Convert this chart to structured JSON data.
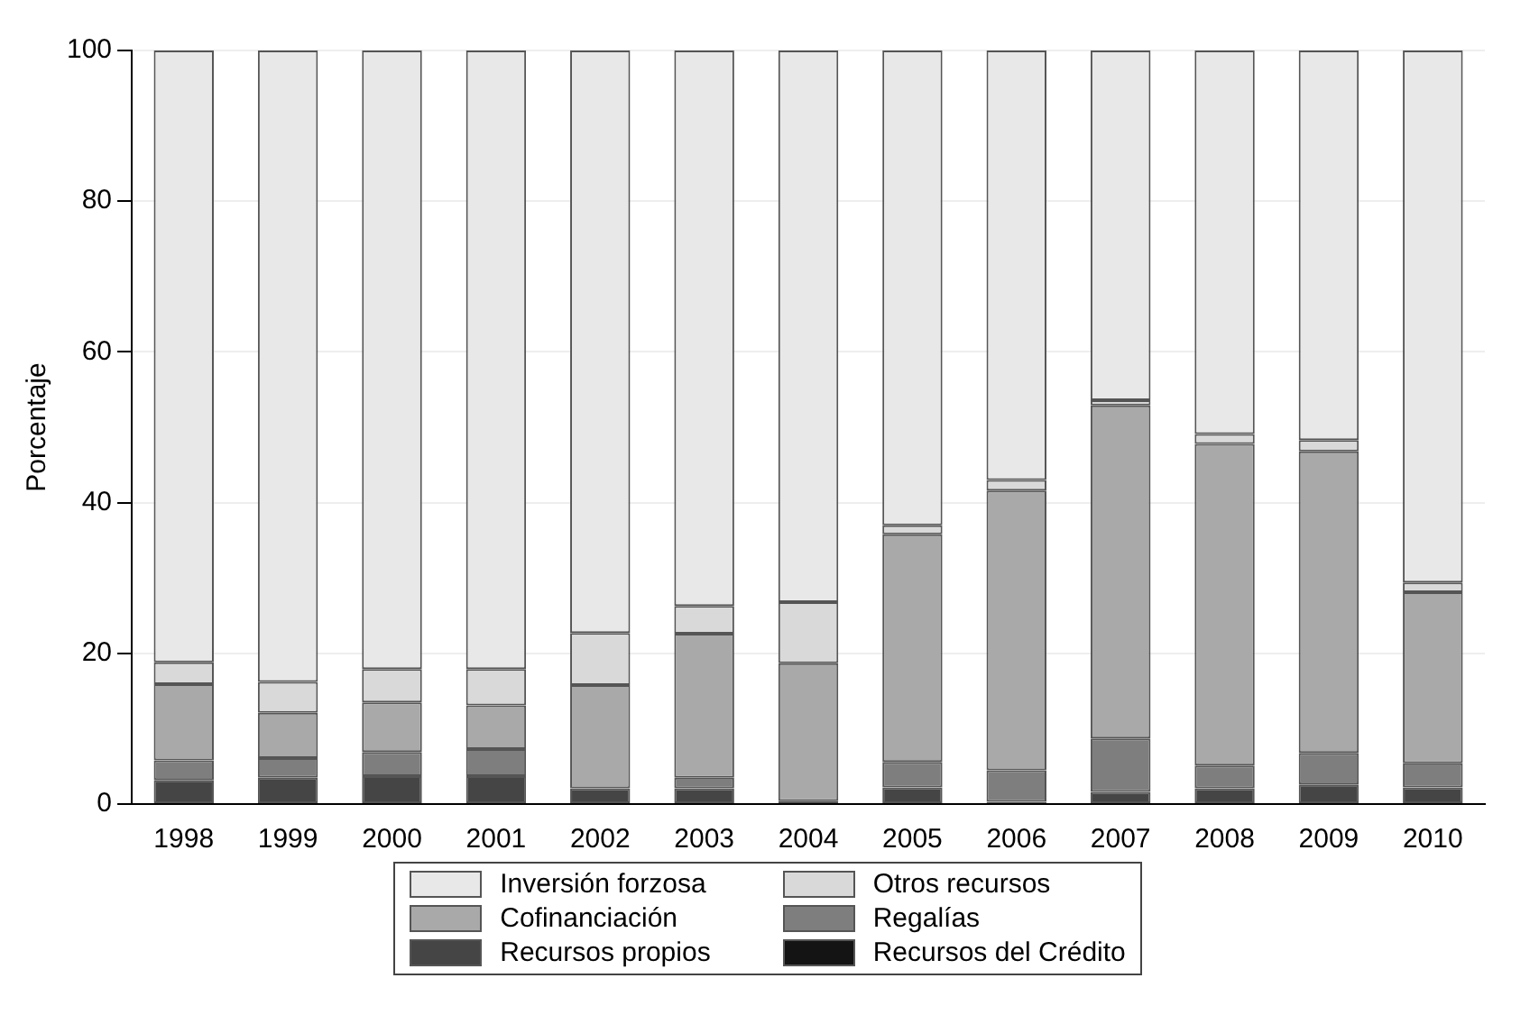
{
  "chart_data": {
    "type": "bar",
    "stacked": true,
    "ylabel": "Porcentaje",
    "categories": [
      "1998",
      "1999",
      "2000",
      "2001",
      "2002",
      "2003",
      "2004",
      "2005",
      "2006",
      "2007",
      "2008",
      "2009",
      "2010"
    ],
    "series": [
      {
        "name": "Recursos del Crédito",
        "color": "#141414",
        "values": [
          0,
          0,
          0,
          0,
          0,
          0,
          0,
          0,
          0,
          0,
          0,
          0,
          0
        ]
      },
      {
        "name": "Recursos propios",
        "color": "#454545",
        "values": [
          3.2,
          3.5,
          3.7,
          3.7,
          2.1,
          2.1,
          0.4,
          2.2,
          0.3,
          1.6,
          2.1,
          2.6,
          2.2
        ]
      },
      {
        "name": "Regalías",
        "color": "#7e7e7e",
        "values": [
          2.6,
          2.6,
          3.2,
          3.6,
          0,
          1.4,
          0,
          3.4,
          4.2,
          7.1,
          3.0,
          4.2,
          3.2
        ]
      },
      {
        "name": "Cofinanciación",
        "color": "#a9a9a9",
        "values": [
          10.1,
          6.0,
          6.6,
          5.8,
          13.7,
          19.1,
          18.3,
          30.2,
          37.1,
          44.2,
          42.7,
          40.0,
          22.7
        ]
      },
      {
        "name": "Otros recursos",
        "color": "#d9d9d9",
        "values": [
          2.9,
          4.1,
          4.4,
          4.8,
          6.9,
          3.7,
          8.1,
          1.2,
          1.4,
          0.7,
          1.3,
          1.5,
          1.3
        ]
      },
      {
        "name": "Inversión forzosa",
        "color": "#e8e8e8",
        "values": [
          81.2,
          83.8,
          82.1,
          82.1,
          77.3,
          73.7,
          73.2,
          63.0,
          57.0,
          46.4,
          50.9,
          51.7,
          70.6
        ]
      }
    ],
    "ylim": [
      0,
      100
    ],
    "yticks": [
      0,
      20,
      40,
      60,
      80,
      100
    ],
    "grid": "y",
    "legend": "bottom"
  }
}
